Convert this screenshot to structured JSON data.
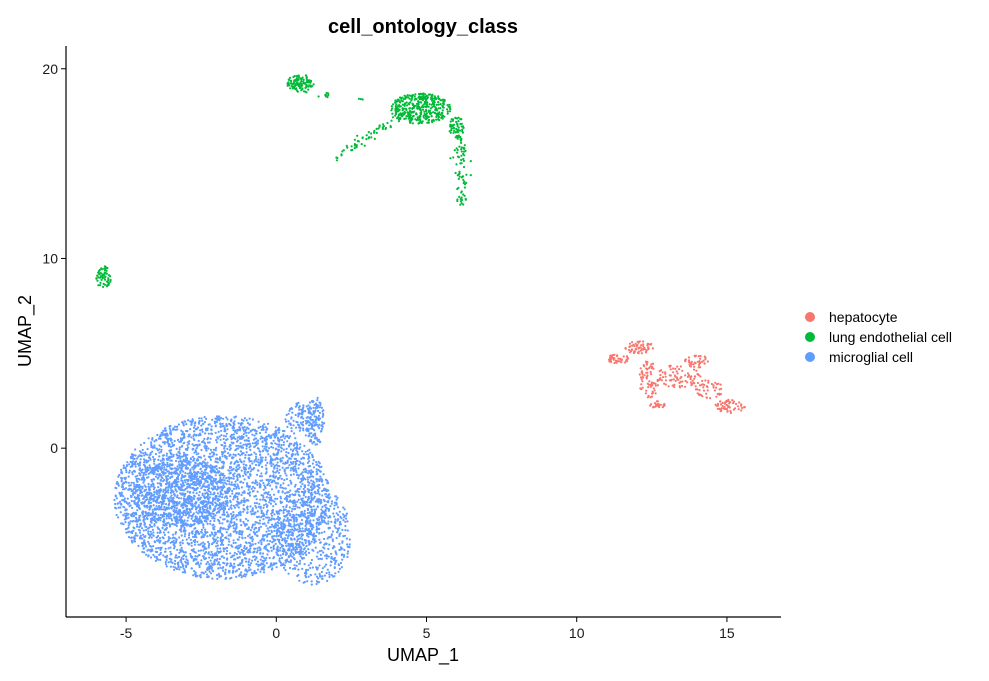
{
  "chart_data": {
    "type": "scatter",
    "title": "cell_ontology_class",
    "xlabel": "UMAP_1",
    "ylabel": "UMAP_2",
    "xlim": [
      -7.0,
      16.8
    ],
    "ylim": [
      -8.9,
      21.2
    ],
    "x_ticks": [
      -5,
      0,
      5,
      10,
      15
    ],
    "x_tick_labels": [
      "-5",
      "0",
      "5",
      "10",
      "15"
    ],
    "y_ticks": [
      0,
      10,
      20
    ],
    "y_tick_labels": [
      "0",
      "10",
      "20"
    ],
    "grid": false,
    "legend_position": "right",
    "series": [
      {
        "name": "hepatocyte",
        "color": "#F8766D",
        "clusters": [
          {
            "shape": "blob",
            "center": [
              11.4,
              4.7
            ],
            "radius": [
              0.35,
              0.3
            ],
            "count": 40
          },
          {
            "shape": "blob",
            "center": [
              12.1,
              5.3
            ],
            "radius": [
              0.5,
              0.35
            ],
            "count": 60
          },
          {
            "shape": "blob",
            "center": [
              12.4,
              3.6
            ],
            "radius": [
              0.35,
              1.0
            ],
            "count": 70
          },
          {
            "shape": "blob",
            "center": [
              12.7,
              2.3
            ],
            "radius": [
              0.3,
              0.2
            ],
            "count": 25
          },
          {
            "shape": "blob",
            "center": [
              13.4,
              3.8
            ],
            "radius": [
              0.8,
              0.6
            ],
            "count": 80
          },
          {
            "shape": "blob",
            "center": [
              14.0,
              4.6
            ],
            "radius": [
              0.4,
              0.35
            ],
            "count": 40
          },
          {
            "shape": "blob",
            "center": [
              14.4,
              3.1
            ],
            "radius": [
              0.5,
              0.5
            ],
            "count": 45
          },
          {
            "shape": "blob",
            "center": [
              15.1,
              2.2
            ],
            "radius": [
              0.5,
              0.35
            ],
            "count": 55
          }
        ]
      },
      {
        "name": "lung endothelial cell",
        "color": "#00BA38",
        "clusters": [
          {
            "shape": "blob",
            "center": [
              -5.75,
              9.0
            ],
            "radius": [
              0.25,
              0.6
            ],
            "count": 60
          },
          {
            "shape": "blob",
            "center": [
              0.8,
              19.2
            ],
            "radius": [
              0.45,
              0.5
            ],
            "count": 110
          },
          {
            "shape": "blob",
            "center": [
              4.8,
              17.9
            ],
            "radius": [
              1.0,
              0.8
            ],
            "count": 380
          },
          {
            "shape": "blob",
            "center": [
              6.0,
              16.9
            ],
            "radius": [
              0.25,
              0.6
            ],
            "count": 60
          },
          {
            "shape": "line",
            "from": [
              2.0,
              15.3
            ],
            "to": [
              4.0,
              17.4
            ],
            "spread": 0.12,
            "count": 55
          },
          {
            "shape": "line",
            "from": [
              6.2,
              16.3
            ],
            "to": [
              6.15,
              12.7
            ],
            "spread": 0.1,
            "count": 70
          },
          {
            "shape": "blob",
            "center": [
              1.6,
              18.6
            ],
            "radius": [
              0.25,
              0.2
            ],
            "count": 8
          },
          {
            "shape": "blob",
            "center": [
              2.8,
              18.4
            ],
            "radius": [
              0.15,
              0.15
            ],
            "count": 3
          }
        ]
      },
      {
        "name": "microglial cell",
        "color": "#619CFF",
        "clusters": [
          {
            "shape": "blob",
            "center": [
              -1.8,
              -2.6
            ],
            "radius": [
              3.6,
              4.3
            ],
            "count": 3600
          },
          {
            "shape": "blob",
            "center": [
              -3.2,
              -2.3
            ],
            "radius": [
              1.6,
              1.9
            ],
            "count": 700
          },
          {
            "shape": "blob",
            "center": [
              1.2,
              -4.6
            ],
            "radius": [
              1.3,
              2.6
            ],
            "count": 500
          },
          {
            "shape": "blob",
            "center": [
              1.3,
              1.4
            ],
            "radius": [
              0.3,
              1.3
            ],
            "count": 120
          },
          {
            "shape": "blob",
            "center": [
              0.8,
              1.5
            ],
            "radius": [
              0.5,
              0.9
            ],
            "count": 90
          }
        ]
      }
    ]
  }
}
